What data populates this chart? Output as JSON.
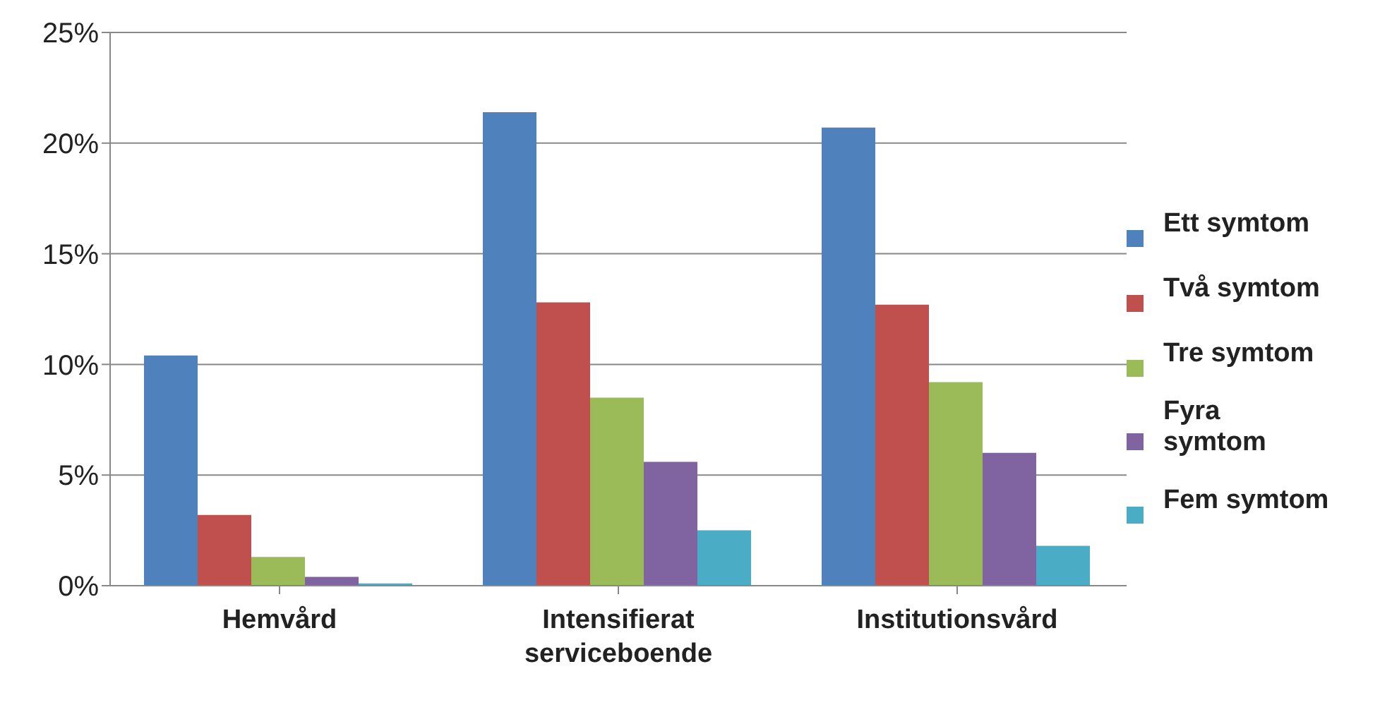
{
  "chart_data": {
    "type": "bar",
    "categories": [
      "Hemvård",
      "Intensifierat serviceboende",
      "Institutionsvård"
    ],
    "series": [
      {
        "name": "Ett symtom",
        "color": "#4f81bd",
        "values": [
          10.4,
          21.4,
          20.7
        ]
      },
      {
        "name": "Två symtom",
        "color": "#c0504d",
        "values": [
          3.2,
          12.8,
          12.7
        ]
      },
      {
        "name": "Tre symtom",
        "color": "#9bbb59",
        "values": [
          1.3,
          8.5,
          9.2
        ]
      },
      {
        "name": "Fyra symtom",
        "color": "#8064a2",
        "values": [
          0.4,
          5.6,
          6.0
        ]
      },
      {
        "name": "Fem symtom",
        "color": "#4bacc6",
        "values": [
          0.1,
          2.5,
          1.8
        ]
      }
    ],
    "ylim": [
      0,
      25
    ],
    "yticks": [
      {
        "value": 0,
        "label": "0%"
      },
      {
        "value": 5,
        "label": "5%"
      },
      {
        "value": 10,
        "label": "10%"
      },
      {
        "value": 15,
        "label": "15%"
      },
      {
        "value": 20,
        "label": "20%"
      },
      {
        "value": 25,
        "label": "25%"
      }
    ],
    "grid": "y",
    "legend": "right"
  }
}
